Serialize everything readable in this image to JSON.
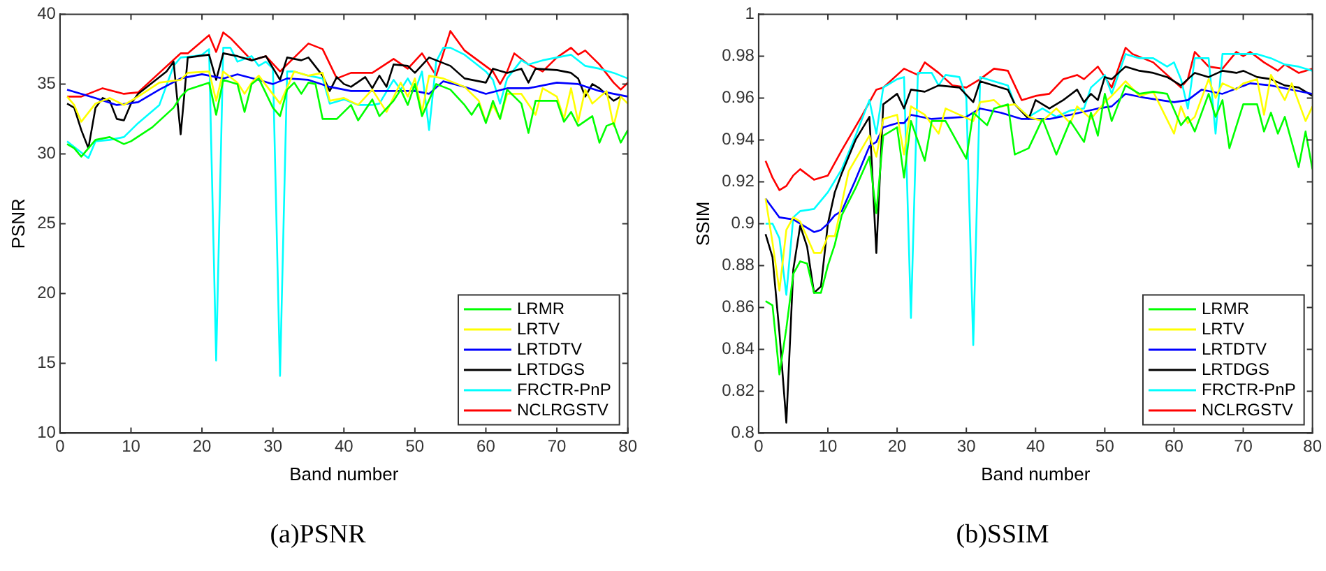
{
  "chart_data": [
    {
      "type": "line",
      "title": "(a)PSNR",
      "xlabel": "Band number",
      "ylabel": "PSNR",
      "xlim": [
        0,
        80
      ],
      "xticks": [
        0,
        10,
        20,
        30,
        40,
        50,
        60,
        70,
        80
      ],
      "ylim": [
        10,
        40
      ],
      "yticks": [
        10,
        15,
        20,
        25,
        30,
        35,
        40
      ],
      "grid": false,
      "legend": "bottom right",
      "marker": "none",
      "line_style": "solid",
      "series": [
        {
          "name": "LRMR",
          "color": "#00ff00",
          "x": [
            1,
            2,
            3,
            4,
            5,
            7,
            9,
            10,
            13,
            16,
            17,
            18,
            21,
            22,
            23,
            25,
            26,
            27,
            28,
            30,
            31,
            32,
            33,
            34,
            35,
            36,
            37,
            39,
            41,
            42,
            44,
            45,
            47,
            48,
            49,
            50,
            51,
            53,
            55,
            57,
            58,
            59,
            60,
            61,
            62,
            63,
            65,
            66,
            67,
            70,
            71,
            72,
            73,
            75,
            76,
            77,
            78,
            79,
            80
          ],
          "values": [
            30.7,
            30.4,
            29.8,
            30.4,
            31.0,
            31.2,
            30.7,
            30.9,
            31.9,
            33.3,
            34.1,
            34.6,
            35.1,
            32.8,
            35.3,
            35.0,
            33.0,
            35.0,
            35.4,
            33.3,
            32.7,
            34.6,
            35.1,
            34.3,
            35.1,
            35.0,
            32.5,
            32.5,
            33.5,
            32.4,
            33.9,
            32.7,
            33.8,
            34.6,
            33.5,
            35.0,
            32.7,
            35.0,
            34.6,
            33.5,
            32.8,
            33.6,
            32.2,
            33.8,
            32.5,
            34.6,
            33.6,
            31.5,
            33.8,
            33.8,
            32.3,
            33.0,
            32.0,
            32.7,
            30.8,
            32.0,
            32.2,
            30.8,
            31.7
          ]
        },
        {
          "name": "LRTV",
          "color": "#ffff00",
          "x": [
            1,
            2,
            3,
            5,
            7,
            9,
            11,
            14,
            17,
            18,
            21,
            22,
            23,
            25,
            26,
            27,
            28,
            31,
            33,
            35,
            37,
            38,
            40,
            42,
            44,
            46,
            48,
            49,
            50,
            51,
            52,
            54,
            57,
            59,
            60,
            61,
            62,
            63,
            65,
            67,
            68,
            70,
            71,
            72,
            73,
            74,
            75,
            77,
            78,
            79,
            80
          ],
          "values": [
            34.1,
            33.5,
            32.3,
            33.6,
            34.0,
            33.5,
            34.1,
            35.1,
            35.3,
            35.8,
            35.9,
            33.8,
            35.9,
            35.1,
            34.3,
            35.1,
            35.6,
            33.6,
            35.9,
            35.6,
            35.8,
            33.8,
            34.0,
            33.5,
            34.6,
            33.0,
            35.1,
            34.1,
            35.4,
            33.0,
            35.6,
            35.4,
            34.8,
            33.8,
            32.3,
            33.5,
            32.5,
            34.3,
            34.3,
            32.8,
            34.7,
            34.1,
            32.5,
            34.7,
            32.3,
            34.6,
            33.6,
            34.5,
            32.0,
            34.1,
            33.6
          ]
        },
        {
          "name": "LRTDTV",
          "color": "#0000ff",
          "x": [
            1,
            5,
            8,
            11,
            14,
            17,
            20,
            23,
            25,
            28,
            30,
            32,
            35,
            38,
            41,
            45,
            50,
            52,
            54,
            57,
            60,
            63,
            66,
            70,
            73,
            76,
            80
          ],
          "values": [
            34.6,
            34.0,
            33.5,
            33.7,
            34.6,
            35.4,
            35.7,
            35.4,
            35.7,
            35.3,
            35.0,
            35.4,
            35.3,
            34.8,
            34.5,
            34.5,
            34.5,
            34.3,
            35.2,
            34.8,
            34.3,
            34.7,
            34.7,
            35.1,
            35.0,
            34.5,
            34.1
          ]
        },
        {
          "name": "LRTDGS",
          "color": "#000000",
          "x": [
            1,
            2,
            3,
            4,
            5,
            6,
            7,
            8,
            9,
            10,
            11,
            13,
            15,
            16,
            17,
            18,
            21,
            22,
            23,
            25,
            27,
            29,
            31,
            32,
            34,
            35,
            37,
            38,
            39,
            40,
            41,
            43,
            44,
            45,
            46,
            47,
            49,
            50,
            52,
            55,
            57,
            60,
            61,
            63,
            65,
            66,
            67,
            70,
            72,
            73,
            74,
            75,
            76,
            78,
            79
          ],
          "values": [
            33.6,
            33.3,
            31.7,
            30.4,
            33.3,
            34.0,
            33.8,
            32.5,
            32.4,
            33.6,
            34.3,
            35.1,
            35.9,
            36.6,
            31.4,
            36.9,
            37.1,
            35.3,
            37.2,
            37.0,
            36.7,
            37.0,
            35.3,
            36.9,
            36.7,
            36.9,
            35.6,
            34.5,
            35.5,
            35.0,
            34.8,
            35.5,
            34.7,
            35.6,
            34.8,
            36.4,
            36.3,
            35.8,
            36.9,
            36.3,
            35.4,
            35.1,
            36.1,
            35.8,
            36.1,
            35.1,
            36.1,
            36.0,
            35.8,
            35.4,
            34.1,
            35.0,
            34.7,
            33.8,
            34.1
          ]
        },
        {
          "name": "FRCTR-PnP",
          "color": "#00ffff",
          "x": [
            1,
            3,
            4,
            5,
            7,
            9,
            11,
            14,
            16,
            17,
            19,
            20,
            21,
            22,
            23,
            24,
            25,
            27,
            28,
            29,
            30,
            31,
            32,
            33,
            35,
            37,
            38,
            40,
            42,
            44,
            45,
            47,
            48,
            49,
            50,
            51,
            52,
            53,
            54,
            55,
            57,
            60,
            61,
            62,
            63,
            65,
            66,
            68,
            70,
            72,
            74,
            76,
            78,
            80
          ],
          "values": [
            30.9,
            30.1,
            29.7,
            30.9,
            31.0,
            31.2,
            32.2,
            33.5,
            36.3,
            36.9,
            37.0,
            37.1,
            37.5,
            15.2,
            37.6,
            37.6,
            36.6,
            37.0,
            36.3,
            36.6,
            36.1,
            14.1,
            35.9,
            35.9,
            35.6,
            35.4,
            33.6,
            33.9,
            33.5,
            33.5,
            33.6,
            35.3,
            34.6,
            35.4,
            34.5,
            35.9,
            31.7,
            36.6,
            37.6,
            37.6,
            37.1,
            35.9,
            35.3,
            33.6,
            35.4,
            36.7,
            36.4,
            36.7,
            36.9,
            37.1,
            36.3,
            36.1,
            35.8,
            35.4
          ]
        },
        {
          "name": "NCLRGSTV",
          "color": "#ff0000",
          "x": [
            1,
            3,
            6,
            9,
            11,
            17,
            18,
            21,
            22,
            23,
            24,
            27,
            29,
            31,
            33,
            35,
            37,
            39,
            41,
            44,
            47,
            49,
            51,
            53,
            55,
            57,
            61,
            62,
            63,
            64,
            66,
            68,
            70,
            72,
            73,
            74,
            76,
            78,
            79,
            80
          ],
          "values": [
            34.1,
            34.1,
            34.7,
            34.3,
            34.4,
            37.2,
            37.2,
            38.5,
            37.3,
            38.7,
            38.3,
            36.7,
            37.0,
            35.9,
            36.9,
            37.9,
            37.5,
            35.4,
            35.8,
            35.8,
            36.8,
            36.1,
            37.2,
            35.6,
            38.8,
            37.4,
            35.9,
            35.0,
            35.9,
            37.2,
            36.4,
            35.9,
            36.9,
            37.6,
            37.1,
            37.4,
            36.4,
            35.1,
            34.6,
            35.1
          ]
        }
      ]
    },
    {
      "type": "line",
      "title": "(b)SSIM",
      "xlabel": "Band number",
      "ylabel": "SSIM",
      "xlim": [
        0,
        80
      ],
      "xticks": [
        0,
        10,
        20,
        30,
        40,
        50,
        60,
        70,
        80
      ],
      "ylim": [
        0.8,
        1
      ],
      "yticks": [
        0.8,
        0.82,
        0.84,
        0.86,
        0.88,
        0.9,
        0.92,
        0.94,
        0.96,
        0.98,
        1
      ],
      "grid": false,
      "legend": "bottom right",
      "marker": "none",
      "line_style": "solid",
      "series": [
        {
          "name": "LRMR",
          "color": "#00ff00",
          "x": [
            1,
            2,
            3,
            4,
            5,
            6,
            7,
            8,
            9,
            10,
            11,
            12,
            14,
            16,
            17,
            18,
            20,
            21,
            22,
            24,
            25,
            27,
            29,
            30,
            31,
            33,
            34,
            36,
            37,
            39,
            41,
            43,
            45,
            47,
            48,
            49,
            50,
            51,
            53,
            55,
            57,
            59,
            61,
            62,
            63,
            65,
            66,
            67,
            68,
            70,
            72,
            73,
            74,
            75,
            76,
            78,
            79,
            80
          ],
          "values": [
            0.863,
            0.861,
            0.828,
            0.85,
            0.876,
            0.882,
            0.881,
            0.867,
            0.867,
            0.88,
            0.89,
            0.904,
            0.917,
            0.932,
            0.905,
            0.942,
            0.946,
            0.922,
            0.949,
            0.93,
            0.949,
            0.949,
            0.937,
            0.931,
            0.953,
            0.947,
            0.955,
            0.957,
            0.933,
            0.936,
            0.95,
            0.933,
            0.949,
            0.939,
            0.953,
            0.942,
            0.962,
            0.949,
            0.966,
            0.962,
            0.963,
            0.962,
            0.947,
            0.951,
            0.944,
            0.962,
            0.951,
            0.959,
            0.936,
            0.957,
            0.957,
            0.944,
            0.953,
            0.943,
            0.951,
            0.927,
            0.944,
            0.926
          ]
        },
        {
          "name": "LRTV",
          "color": "#ffff00",
          "x": [
            1,
            2,
            3,
            4,
            5,
            6,
            8,
            9,
            10,
            11,
            13,
            16,
            17,
            18,
            20,
            21,
            22,
            24,
            26,
            27,
            29,
            31,
            32,
            34,
            35,
            37,
            39,
            41,
            43,
            45,
            46,
            48,
            50,
            51,
            53,
            55,
            57,
            60,
            61,
            62,
            63,
            65,
            66,
            67,
            69,
            70,
            72,
            73,
            74,
            76,
            77,
            79,
            80
          ],
          "values": [
            0.912,
            0.891,
            0.868,
            0.897,
            0.903,
            0.901,
            0.886,
            0.886,
            0.894,
            0.894,
            0.925,
            0.942,
            0.932,
            0.95,
            0.952,
            0.933,
            0.956,
            0.952,
            0.943,
            0.955,
            0.952,
            0.949,
            0.958,
            0.959,
            0.956,
            0.957,
            0.951,
            0.949,
            0.955,
            0.948,
            0.956,
            0.95,
            0.958,
            0.961,
            0.968,
            0.961,
            0.963,
            0.943,
            0.956,
            0.948,
            0.951,
            0.969,
            0.96,
            0.967,
            0.964,
            0.967,
            0.969,
            0.952,
            0.971,
            0.959,
            0.967,
            0.949,
            0.956
          ]
        },
        {
          "name": "LRTDTV",
          "color": "#0000ff",
          "x": [
            1,
            3,
            5,
            6,
            8,
            9,
            10,
            11,
            12,
            14,
            16,
            17,
            18,
            20,
            21,
            22,
            25,
            30,
            32,
            35,
            38,
            42,
            45,
            49,
            51,
            53,
            56,
            60,
            62,
            64,
            67,
            71,
            74,
            77,
            80
          ],
          "values": [
            0.912,
            0.903,
            0.902,
            0.9,
            0.896,
            0.897,
            0.9,
            0.904,
            0.906,
            0.921,
            0.937,
            0.939,
            0.946,
            0.948,
            0.948,
            0.952,
            0.95,
            0.951,
            0.955,
            0.953,
            0.95,
            0.95,
            0.952,
            0.955,
            0.956,
            0.962,
            0.96,
            0.958,
            0.959,
            0.964,
            0.962,
            0.967,
            0.966,
            0.964,
            0.962
          ]
        },
        {
          "name": "LRTDGS",
          "color": "#000000",
          "x": [
            1,
            2,
            3,
            4,
            5,
            6,
            7,
            8,
            9,
            10,
            11,
            12,
            14,
            16,
            17,
            18,
            20,
            21,
            22,
            24,
            26,
            29,
            31,
            32,
            34,
            36,
            37,
            39,
            40,
            42,
            44,
            46,
            47,
            48,
            49,
            50,
            51,
            53,
            55,
            57,
            59,
            61,
            63,
            65,
            67,
            69,
            70,
            72,
            74,
            76,
            78,
            80
          ],
          "values": [
            0.895,
            0.884,
            0.848,
            0.805,
            0.878,
            0.899,
            0.889,
            0.867,
            0.87,
            0.9,
            0.915,
            0.924,
            0.94,
            0.951,
            0.886,
            0.957,
            0.962,
            0.955,
            0.964,
            0.963,
            0.966,
            0.965,
            0.958,
            0.968,
            0.966,
            0.964,
            0.957,
            0.95,
            0.959,
            0.955,
            0.959,
            0.964,
            0.958,
            0.962,
            0.959,
            0.97,
            0.969,
            0.975,
            0.973,
            0.972,
            0.97,
            0.966,
            0.972,
            0.97,
            0.973,
            0.972,
            0.973,
            0.97,
            0.969,
            0.966,
            0.965,
            0.961
          ]
        },
        {
          "name": "FRCTR-PnP",
          "color": "#00ffff",
          "x": [
            1,
            2,
            3,
            4,
            5,
            6,
            8,
            10,
            12,
            14,
            16,
            17,
            18,
            20,
            21,
            22,
            23,
            25,
            26,
            27,
            29,
            30,
            31,
            32,
            34,
            36,
            37,
            39,
            41,
            43,
            45,
            47,
            48,
            50,
            51,
            53,
            55,
            57,
            59,
            60,
            61,
            62,
            63,
            65,
            66,
            67,
            70,
            72,
            74,
            76,
            78,
            80
          ],
          "values": [
            0.9,
            0.9,
            0.893,
            0.866,
            0.903,
            0.906,
            0.907,
            0.915,
            0.926,
            0.942,
            0.959,
            0.943,
            0.965,
            0.969,
            0.97,
            0.855,
            0.972,
            0.972,
            0.966,
            0.971,
            0.97,
            0.96,
            0.842,
            0.97,
            0.968,
            0.966,
            0.957,
            0.951,
            0.955,
            0.951,
            0.954,
            0.955,
            0.965,
            0.971,
            0.962,
            0.981,
            0.979,
            0.979,
            0.975,
            0.977,
            0.969,
            0.955,
            0.979,
            0.979,
            0.943,
            0.981,
            0.981,
            0.981,
            0.979,
            0.976,
            0.975,
            0.973
          ]
        },
        {
          "name": "NCLRGSTV",
          "color": "#ff0000",
          "x": [
            1,
            2,
            3,
            4,
            5,
            6,
            8,
            10,
            12,
            15,
            17,
            18,
            21,
            23,
            24,
            26,
            28,
            30,
            32,
            34,
            36,
            38,
            40,
            42,
            44,
            46,
            47,
            49,
            51,
            53,
            54,
            57,
            59,
            61,
            62,
            63,
            65,
            67,
            69,
            70,
            71,
            73,
            75,
            76,
            78,
            80
          ],
          "values": [
            0.93,
            0.922,
            0.916,
            0.918,
            0.923,
            0.926,
            0.921,
            0.923,
            0.935,
            0.952,
            0.964,
            0.965,
            0.974,
            0.971,
            0.977,
            0.972,
            0.966,
            0.965,
            0.969,
            0.974,
            0.973,
            0.959,
            0.961,
            0.962,
            0.969,
            0.971,
            0.969,
            0.975,
            0.965,
            0.984,
            0.981,
            0.977,
            0.971,
            0.965,
            0.969,
            0.982,
            0.975,
            0.974,
            0.982,
            0.98,
            0.982,
            0.977,
            0.973,
            0.976,
            0.972,
            0.974
          ]
        }
      ]
    }
  ]
}
